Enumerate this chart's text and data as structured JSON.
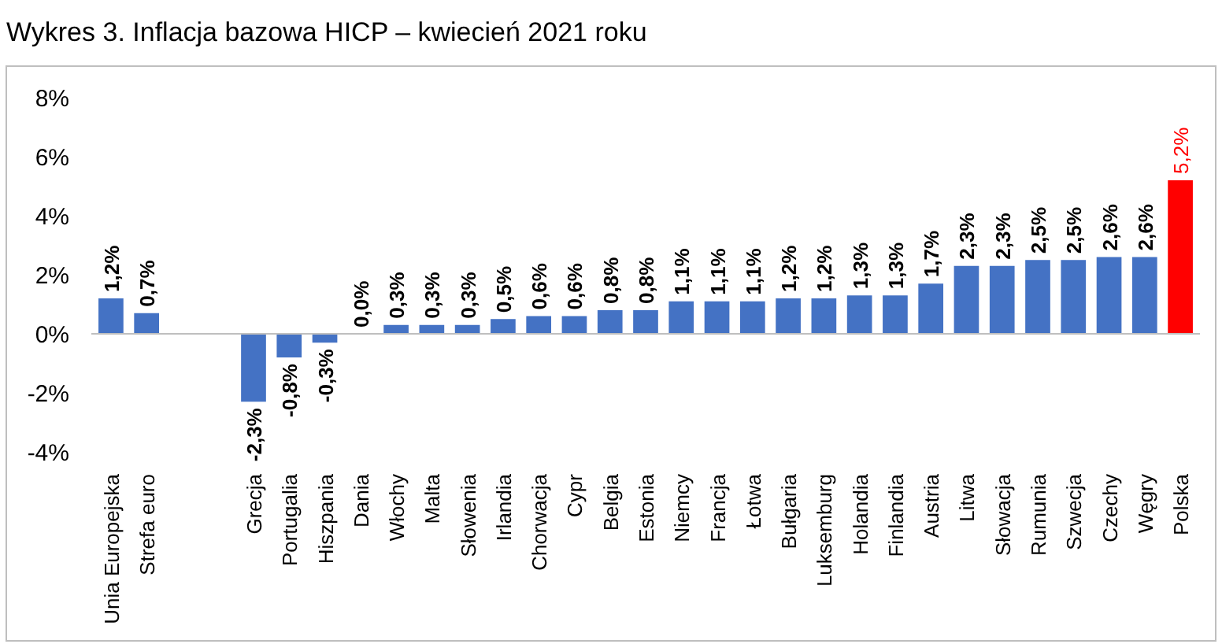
{
  "chart_data": {
    "type": "bar",
    "title": "Wykres 3. Inflacja bazowa HICP – kwiecień 2021 roku",
    "categories": [
      "Unia Europejska",
      "Strefa euro",
      null,
      null,
      "Grecja",
      "Portugalia",
      "Hiszpania",
      "Dania",
      "Włochy",
      "Malta",
      "Słowenia",
      "Irlandia",
      "Chorwacja",
      "Cypr",
      "Belgia",
      "Estonia",
      "Niemcy",
      "Francja",
      "Łotwa",
      "Bułgaria",
      "Luksemburg",
      "Holandia",
      "Finlandia",
      "Austria",
      "Litwa",
      "Słowacja",
      "Rumunia",
      "Szwecja",
      "Czechy",
      "Węgry",
      "Polska"
    ],
    "values": [
      1.2,
      0.7,
      null,
      null,
      -2.3,
      -0.8,
      -0.3,
      0.0,
      0.3,
      0.3,
      0.3,
      0.5,
      0.6,
      0.6,
      0.8,
      0.8,
      1.1,
      1.1,
      1.1,
      1.2,
      1.2,
      1.3,
      1.3,
      1.7,
      2.3,
      2.3,
      2.5,
      2.5,
      2.6,
      2.6,
      5.2
    ],
    "value_labels": [
      "1,2%",
      "0,7%",
      null,
      null,
      "-2,3%",
      "-0,8%",
      "-0,3%",
      "0,0%",
      "0,3%",
      "0,3%",
      "0,3%",
      "0,5%",
      "0,6%",
      "0,6%",
      "0,8%",
      "0,8%",
      "1,1%",
      "1,1%",
      "1,1%",
      "1,2%",
      "1,2%",
      "1,3%",
      "1,3%",
      "1,7%",
      "2,3%",
      "2,3%",
      "2,5%",
      "2,5%",
      "2,6%",
      "2,6%",
      "5,2%"
    ],
    "color": "#4472c4",
    "colors": [
      "#4472c4",
      "#4472c4",
      null,
      null,
      "#4472c4",
      "#4472c4",
      "#4472c4",
      "#4472c4",
      "#4472c4",
      "#4472c4",
      "#4472c4",
      "#4472c4",
      "#4472c4",
      "#4472c4",
      "#4472c4",
      "#4472c4",
      "#4472c4",
      "#4472c4",
      "#4472c4",
      "#4472c4",
      "#4472c4",
      "#4472c4",
      "#4472c4",
      "#4472c4",
      "#4472c4",
      "#4472c4",
      "#4472c4",
      "#4472c4",
      "#4472c4",
      "#4472c4",
      "#ff0000"
    ],
    "ylim": [
      -4,
      8
    ],
    "yticks": [
      {
        "value": -4,
        "label": "-4%"
      },
      {
        "value": -2,
        "label": "-2%"
      },
      {
        "value": 0,
        "label": "0%"
      },
      {
        "value": 2,
        "label": "2%"
      },
      {
        "value": 4,
        "label": "4%"
      },
      {
        "value": 6,
        "label": "6%"
      },
      {
        "value": 8,
        "label": "8%"
      }
    ],
    "ylabel": null
  }
}
